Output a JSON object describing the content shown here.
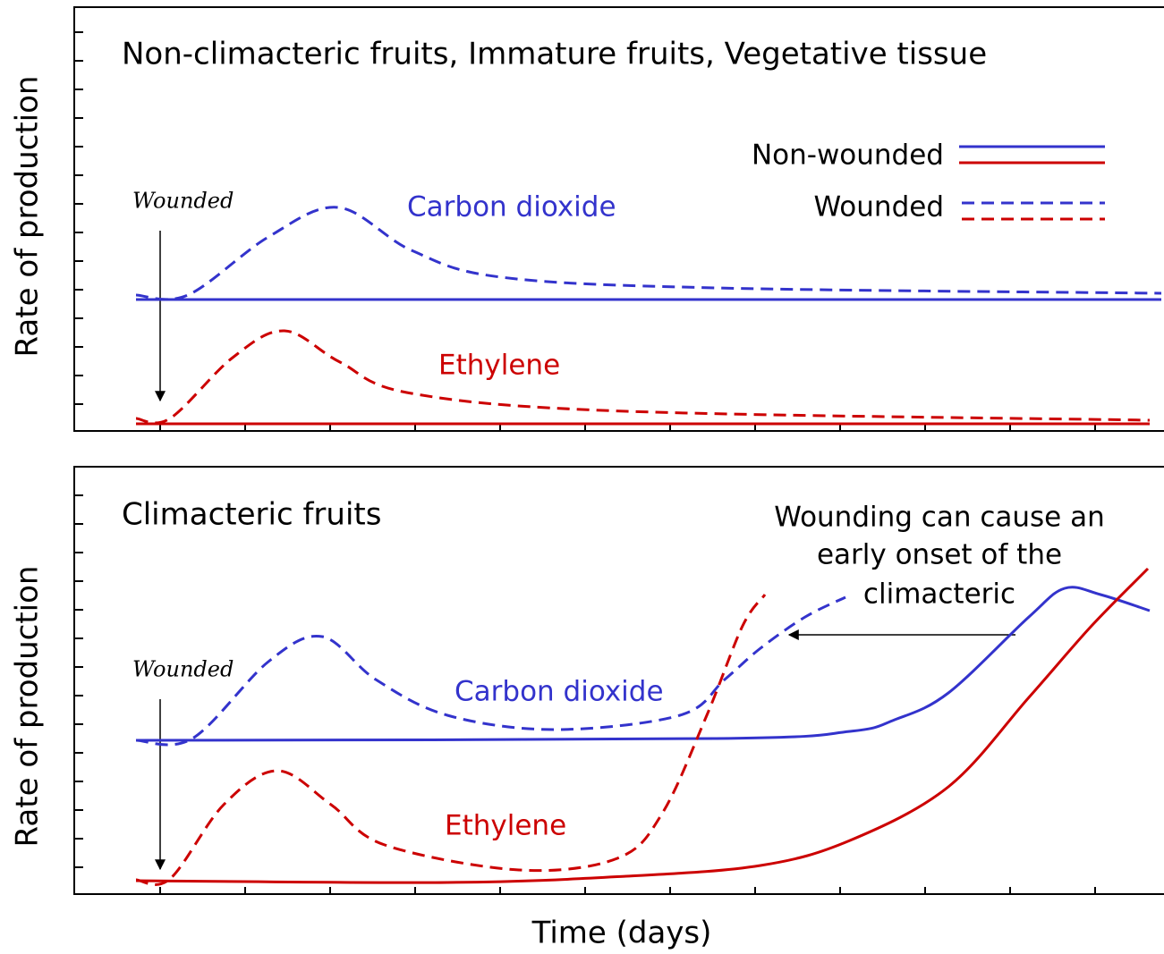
{
  "panels": [
    {
      "title": "Non-climacteric fruits, Immature fruits, Vegetative tissue",
      "y_label": "Rate of production",
      "wounded_label": "Wounded",
      "co2_label": "Carbon dioxide",
      "ethylene_label": "Ethylene"
    },
    {
      "title": "Climacteric fruits",
      "y_label": "Rate of production",
      "wounded_label": "Wounded",
      "co2_label": "Carbon dioxide",
      "ethylene_label": "Ethylene",
      "annotation": [
        "Wounding can cause an",
        "early onset of the",
        "climacteric"
      ]
    }
  ],
  "legend": {
    "non_wounded": "Non-wounded",
    "wounded": "Wounded"
  },
  "x_label": "Time (days)"
}
